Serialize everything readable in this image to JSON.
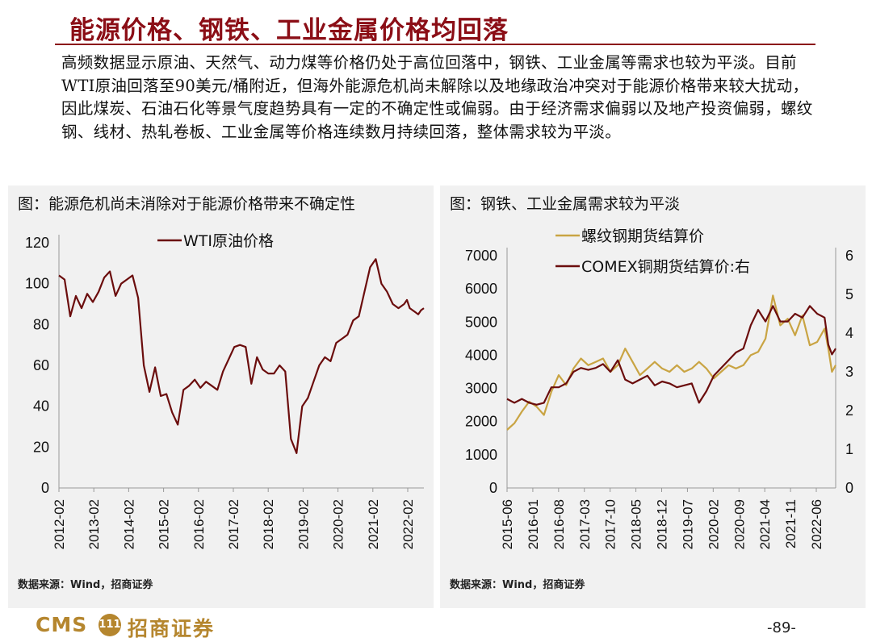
{
  "title": "能源价格、钢铁、工业金属价格均回落",
  "paragraph": "高频数据显示原油、天然气、动力煤等价格仍处于高位回落中，钢铁、工业金属等需求也较为平淡。目前WTI原油回落至90美元/桶附近，但海外能源危机尚未解除以及地缘政治冲突对于能源价格带来较大扰动，因此煤炭、石油石化等景气度趋势具有一定的不确定性或偏弱。由于经济需求偏弱以及地产投资偏弱，螺纹钢、线材、热轧卷板、工业金属等价格连续数月持续回落，整体需求较为平淡。",
  "footer": {
    "logo_latin": "CMS",
    "logo_badge": "111",
    "logo_cn": "招商证券",
    "page": "-89-"
  },
  "colors": {
    "brand": "#8b0e16",
    "series_dark": "#6b0d0d",
    "series_gold": "#c9a443",
    "panel_bg": "#f1f1f1"
  },
  "chart_data": [
    {
      "type": "line",
      "title": "图：能源危机尚未消除对于能源价格带来不确定性",
      "source": "数据来源：Wind，招商证券",
      "ylim": [
        0,
        120
      ],
      "yticks": [
        "0",
        "20",
        "40",
        "60",
        "80",
        "100",
        "120"
      ],
      "xticks": [
        "2012-02",
        "2013-02",
        "2014-02",
        "2015-02",
        "2016-02",
        "2017-02",
        "2018-02",
        "2019-02",
        "2020-02",
        "2021-02",
        "2022-02"
      ],
      "xlim": [
        0,
        129
      ],
      "legend": "top",
      "series": [
        {
          "name": "WTI原油价格",
          "color": "#6b0d0d",
          "x": [
            0,
            2,
            4,
            6,
            8,
            10,
            12,
            14,
            16,
            18,
            20,
            22,
            24,
            26,
            28,
            30,
            32,
            34,
            36,
            38,
            40,
            42,
            44,
            46,
            48,
            50,
            52,
            54,
            56,
            58,
            60,
            62,
            64,
            66,
            68,
            70,
            72,
            74,
            76,
            78,
            80,
            82,
            84,
            86,
            88,
            90,
            92,
            94,
            96,
            98,
            100,
            102,
            104,
            106,
            108,
            110,
            112,
            114,
            116,
            118,
            120,
            122,
            123,
            124,
            125,
            126,
            127,
            128,
            129
          ],
          "y": [
            104,
            102,
            84,
            94,
            88,
            95,
            91,
            96,
            103,
            106,
            94,
            100,
            102,
            104,
            93,
            60,
            47,
            59,
            45,
            46,
            37,
            31,
            48,
            50,
            53,
            49,
            52,
            50,
            48,
            57,
            63,
            69,
            70,
            69,
            51,
            64,
            58,
            56,
            56,
            60,
            57,
            24,
            17,
            40,
            44,
            52,
            60,
            64,
            62,
            71,
            73,
            75,
            82,
            84,
            96,
            108,
            112,
            100,
            96,
            90,
            88,
            90,
            92,
            88,
            87,
            86,
            85,
            87,
            88
          ]
        }
      ]
    },
    {
      "type": "line",
      "title": "图：钢铁、工业金属需求较为平淡",
      "source": "数据来源：Wind，招商证券",
      "ylim": [
        0,
        7000
      ],
      "yticks": [
        "0",
        "1000",
        "2000",
        "3000",
        "4000",
        "5000",
        "6000",
        "7000"
      ],
      "y2lim": [
        0,
        6
      ],
      "y2ticks": [
        "0",
        "1",
        "2",
        "3",
        "4",
        "5",
        "6"
      ],
      "xticks": [
        "2015-06",
        "2016-01",
        "2016-08",
        "2017-03",
        "2017-10",
        "2018-05",
        "2018-12",
        "2019-07",
        "2020-02",
        "2020-09",
        "2021-04",
        "2021-11",
        "2022-06"
      ],
      "xlim": [
        0,
        89
      ],
      "legend": "top",
      "series": [
        {
          "name": "螺纹钢期货结算价",
          "color": "#c9a443",
          "axis": "left",
          "x": [
            0,
            2,
            4,
            6,
            8,
            10,
            12,
            14,
            16,
            18,
            20,
            22,
            24,
            26,
            28,
            30,
            32,
            34,
            36,
            38,
            40,
            42,
            44,
            46,
            48,
            50,
            52,
            54,
            56,
            58,
            60,
            62,
            64,
            66,
            68,
            70,
            72,
            74,
            76,
            78,
            80,
            82,
            84,
            86,
            87,
            88,
            89
          ],
          "y": [
            1750,
            1950,
            2300,
            2600,
            2450,
            2200,
            2900,
            3400,
            3100,
            3600,
            3900,
            3700,
            3800,
            3900,
            3500,
            3700,
            4200,
            3800,
            3400,
            3600,
            3800,
            3600,
            3500,
            3700,
            3500,
            3600,
            3800,
            3600,
            3300,
            3500,
            3700,
            3600,
            3700,
            4000,
            4100,
            4500,
            5800,
            4900,
            5100,
            4600,
            5200,
            4300,
            4400,
            4800,
            4200,
            3500,
            3700
          ]
        },
        {
          "name": "COMEX铜期货结算价:右",
          "color": "#6b0d0d",
          "axis": "right",
          "x": [
            0,
            2,
            4,
            6,
            8,
            10,
            12,
            14,
            16,
            18,
            20,
            22,
            24,
            26,
            28,
            30,
            32,
            34,
            36,
            38,
            40,
            42,
            44,
            46,
            48,
            50,
            52,
            54,
            56,
            58,
            60,
            62,
            64,
            66,
            68,
            70,
            72,
            74,
            76,
            78,
            80,
            82,
            84,
            86,
            87,
            88,
            89
          ],
          "y": [
            2.3,
            2.2,
            2.3,
            2.2,
            2.15,
            2.2,
            2.6,
            2.6,
            2.7,
            3.0,
            3.1,
            3.05,
            3.1,
            3.2,
            3.0,
            3.3,
            2.8,
            2.7,
            2.8,
            2.9,
            2.65,
            2.75,
            2.7,
            2.6,
            2.65,
            2.7,
            2.2,
            2.5,
            2.9,
            3.1,
            3.3,
            3.5,
            3.6,
            4.2,
            4.6,
            4.3,
            4.7,
            4.3,
            4.3,
            4.5,
            4.4,
            4.7,
            4.5,
            4.4,
            3.7,
            3.45,
            3.6
          ]
        }
      ]
    }
  ]
}
